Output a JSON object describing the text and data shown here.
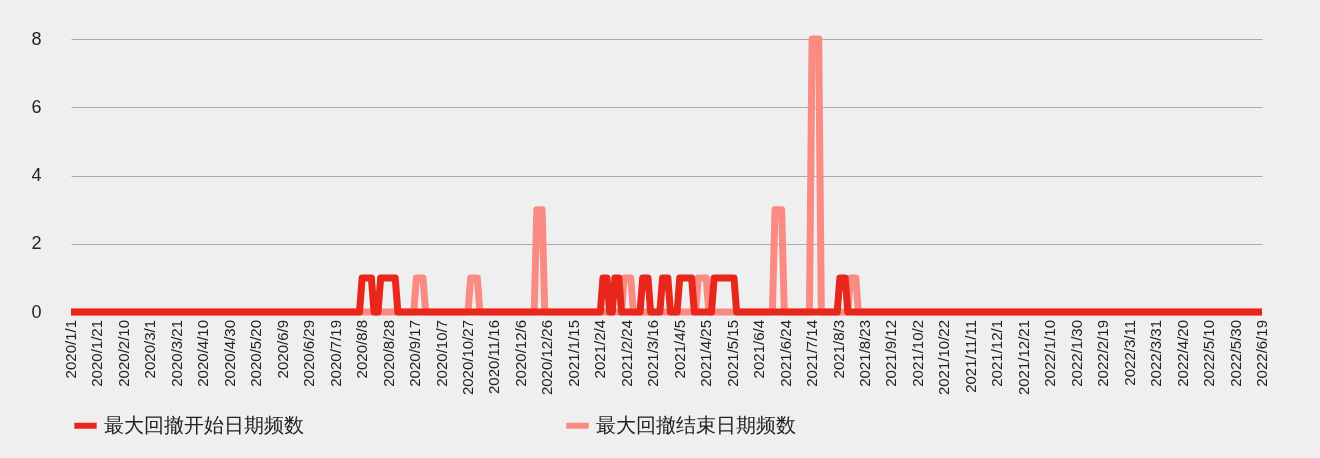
{
  "chart_data": {
    "type": "line",
    "line_style": "solid",
    "marker": "none",
    "grid": "y",
    "legend": "bottom",
    "xlim": [
      "2020-01-01",
      "2022-06-19"
    ],
    "ylim": [
      0,
      8
    ],
    "yticks": [
      0,
      2,
      4,
      6,
      8
    ],
    "xticks": [
      {
        "value": "2020-01-01",
        "label": "2020/1/1"
      },
      {
        "value": "2020-01-21",
        "label": "2020/1/21"
      },
      {
        "value": "2020-02-10",
        "label": "2020/2/10"
      },
      {
        "value": "2020-03-01",
        "label": "2020/3/1"
      },
      {
        "value": "2020-03-21",
        "label": "2020/3/21"
      },
      {
        "value": "2020-04-10",
        "label": "2020/4/10"
      },
      {
        "value": "2020-04-30",
        "label": "2020/4/30"
      },
      {
        "value": "2020-05-20",
        "label": "2020/5/20"
      },
      {
        "value": "2020-06-09",
        "label": "2020/6/9"
      },
      {
        "value": "2020-06-29",
        "label": "2020/6/29"
      },
      {
        "value": "2020-07-19",
        "label": "2020/7/19"
      },
      {
        "value": "2020-08-08",
        "label": "2020/8/8"
      },
      {
        "value": "2020-08-28",
        "label": "2020/8/28"
      },
      {
        "value": "2020-09-17",
        "label": "2020/9/17"
      },
      {
        "value": "2020-10-07",
        "label": "2020/10/7"
      },
      {
        "value": "2020-10-27",
        "label": "2020/10/27"
      },
      {
        "value": "2020-11-16",
        "label": "2020/11/16"
      },
      {
        "value": "2020-12-06",
        "label": "2020/12/6"
      },
      {
        "value": "2020-12-26",
        "label": "2020/12/26"
      },
      {
        "value": "2021-01-15",
        "label": "2021/1/15"
      },
      {
        "value": "2021-02-04",
        "label": "2021/2/4"
      },
      {
        "value": "2021-02-24",
        "label": "2021/2/24"
      },
      {
        "value": "2021-03-16",
        "label": "2021/3/16"
      },
      {
        "value": "2021-04-05",
        "label": "2021/4/5"
      },
      {
        "value": "2021-04-25",
        "label": "2021/4/25"
      },
      {
        "value": "2021-05-15",
        "label": "2021/5/15"
      },
      {
        "value": "2021-06-04",
        "label": "2021/6/4"
      },
      {
        "value": "2021-06-24",
        "label": "2021/6/24"
      },
      {
        "value": "2021-07-14",
        "label": "2021/7/14"
      },
      {
        "value": "2021-08-03",
        "label": "2021/8/3"
      },
      {
        "value": "2021-08-23",
        "label": "2021/8/23"
      },
      {
        "value": "2021-09-12",
        "label": "2021/9/12"
      },
      {
        "value": "2021-10-02",
        "label": "2021/10/2"
      },
      {
        "value": "2021-10-22",
        "label": "2021/10/22"
      },
      {
        "value": "2021-11-11",
        "label": "2021/11/11"
      },
      {
        "value": "2021-12-01",
        "label": "2021/12/1"
      },
      {
        "value": "2021-12-21",
        "label": "2021/12/21"
      },
      {
        "value": "2022-01-10",
        "label": "2022/1/10"
      },
      {
        "value": "2022-01-30",
        "label": "2022/1/30"
      },
      {
        "value": "2022-02-19",
        "label": "2022/2/19"
      },
      {
        "value": "2022-03-11",
        "label": "2022/3/11"
      },
      {
        "value": "2022-03-31",
        "label": "2022/3/31"
      },
      {
        "value": "2022-04-20",
        "label": "2022/4/20"
      },
      {
        "value": "2022-05-10",
        "label": "2022/5/10"
      },
      {
        "value": "2022-05-30",
        "label": "2022/5/30"
      },
      {
        "value": "2022-06-19",
        "label": "2022/6/19"
      }
    ],
    "series": [
      {
        "name": "最大回撤开始日期频数",
        "color": "#e8261c",
        "x": [
          "2020-01-01",
          "2020-08-06",
          "2020-08-08",
          "2020-08-15",
          "2020-08-17",
          "2020-08-20",
          "2020-08-22",
          "2020-09-02",
          "2020-09-04",
          "2021-02-04",
          "2021-02-06",
          "2021-02-09",
          "2021-02-11",
          "2021-02-13",
          "2021-02-15",
          "2021-02-18",
          "2021-02-20",
          "2021-03-06",
          "2021-03-08",
          "2021-03-12",
          "2021-03-14",
          "2021-03-21",
          "2021-03-23",
          "2021-03-27",
          "2021-03-29",
          "2021-04-03",
          "2021-04-05",
          "2021-04-14",
          "2021-04-16",
          "2021-04-29",
          "2021-05-01",
          "2021-05-16",
          "2021-05-18",
          "2021-08-02",
          "2021-08-04",
          "2021-08-08",
          "2021-08-10",
          "2022-06-19"
        ],
        "values": [
          0,
          0,
          1,
          1,
          0,
          0,
          1,
          1,
          0,
          0,
          1,
          1,
          0,
          0,
          1,
          1,
          0,
          0,
          1,
          1,
          0,
          0,
          1,
          1,
          0,
          0,
          1,
          1,
          0,
          0,
          1,
          1,
          0,
          0,
          1,
          1,
          0,
          0
        ]
      },
      {
        "name": "最大回撤结束日期频数",
        "color": "#f98b82",
        "x": [
          "2020-01-01",
          "2020-09-16",
          "2020-09-18",
          "2020-09-23",
          "2020-09-25",
          "2020-10-27",
          "2020-10-29",
          "2020-11-03",
          "2020-11-05",
          "2020-12-16",
          "2020-12-18",
          "2020-12-22",
          "2020-12-24",
          "2021-02-20",
          "2021-02-22",
          "2021-02-27",
          "2021-03-01",
          "2021-04-17",
          "2021-04-19",
          "2021-04-25",
          "2021-04-27",
          "2021-06-14",
          "2021-06-16",
          "2021-06-21",
          "2021-06-23",
          "2021-07-12",
          "2021-07-14",
          "2021-07-19",
          "2021-07-21",
          "2021-08-10",
          "2021-08-12",
          "2021-08-16",
          "2021-08-18",
          "2022-06-19"
        ],
        "values": [
          0,
          0,
          1,
          1,
          0,
          0,
          1,
          1,
          0,
          0,
          3,
          3,
          0,
          0,
          1,
          1,
          0,
          0,
          1,
          1,
          0,
          0,
          3,
          3,
          0,
          0,
          8,
          8,
          0,
          0,
          1,
          1,
          0,
          0
        ]
      }
    ]
  }
}
